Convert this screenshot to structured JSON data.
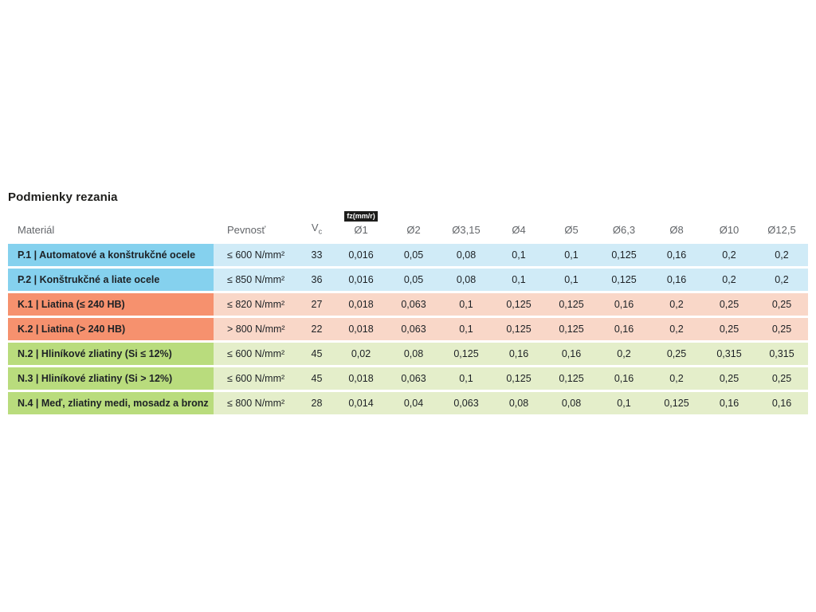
{
  "page_title": "Podmienky rezania",
  "colors": {
    "title_text": "#1d1d1b",
    "header_text": "#63666a",
    "cell_text": "#1d2125",
    "badge_bg": "#1d1d1b",
    "badge_text": "#ffffff",
    "group_p_dark": "#85d1ee",
    "group_p_light": "#d0ebf7",
    "group_k_dark": "#f6916e",
    "group_k_light": "#f9d7c8",
    "group_n_dark": "#b9dc7d",
    "group_n_light": "#e4eeca"
  },
  "table": {
    "header": {
      "material": "Materiál",
      "strength": "Pevnosť",
      "vc_main": "V",
      "vc_sub": "c",
      "fz_unit_badge": "fz(mm/r)",
      "diameters": [
        "Ø1",
        "Ø2",
        "Ø3,15",
        "Ø4",
        "Ø5",
        "Ø6,3",
        "Ø8",
        "Ø10",
        "Ø12,5"
      ]
    },
    "rows": [
      {
        "group": "p",
        "material": "P.1 | Automatové a konštrukčné ocele",
        "strength": "≤ 600 N/mm²",
        "vc": "33",
        "values": [
          "0,016",
          "0,05",
          "0,08",
          "0,1",
          "0,1",
          "0,125",
          "0,16",
          "0,2",
          "0,2"
        ]
      },
      {
        "group": "p",
        "material": "P.2 | Konštrukčné a liate ocele",
        "strength": "≤ 850 N/mm²",
        "vc": "36",
        "values": [
          "0,016",
          "0,05",
          "0,08",
          "0,1",
          "0,1",
          "0,125",
          "0,16",
          "0,2",
          "0,2"
        ]
      },
      {
        "group": "k",
        "material": "K.1 | Liatina (≤ 240 HB)",
        "strength": "≤ 820 N/mm²",
        "vc": "27",
        "values": [
          "0,018",
          "0,063",
          "0,1",
          "0,125",
          "0,125",
          "0,16",
          "0,2",
          "0,25",
          "0,25"
        ]
      },
      {
        "group": "k",
        "material": "K.2 | Liatina (> 240 HB)",
        "strength": "> 800 N/mm²",
        "vc": "22",
        "values": [
          "0,018",
          "0,063",
          "0,1",
          "0,125",
          "0,125",
          "0,16",
          "0,2",
          "0,25",
          "0,25"
        ]
      },
      {
        "group": "n",
        "material": "N.2 | Hliníkové zliatiny (Si ≤ 12%)",
        "strength": "≤ 600 N/mm²",
        "vc": "45",
        "values": [
          "0,02",
          "0,08",
          "0,125",
          "0,16",
          "0,16",
          "0,2",
          "0,25",
          "0,315",
          "0,315"
        ]
      },
      {
        "group": "n",
        "material": "N.3 | Hliníkové zliatiny (Si > 12%)",
        "strength": "≤ 600 N/mm²",
        "vc": "45",
        "values": [
          "0,018",
          "0,063",
          "0,1",
          "0,125",
          "0,125",
          "0,16",
          "0,2",
          "0,25",
          "0,25"
        ]
      },
      {
        "group": "n",
        "material": "N.4 | Meď, zliatiny medi, mosadz a bronz",
        "strength": "≤ 800 N/mm²",
        "vc": "28",
        "values": [
          "0,014",
          "0,04",
          "0,063",
          "0,08",
          "0,08",
          "0,1",
          "0,125",
          "0,16",
          "0,16"
        ]
      }
    ]
  }
}
